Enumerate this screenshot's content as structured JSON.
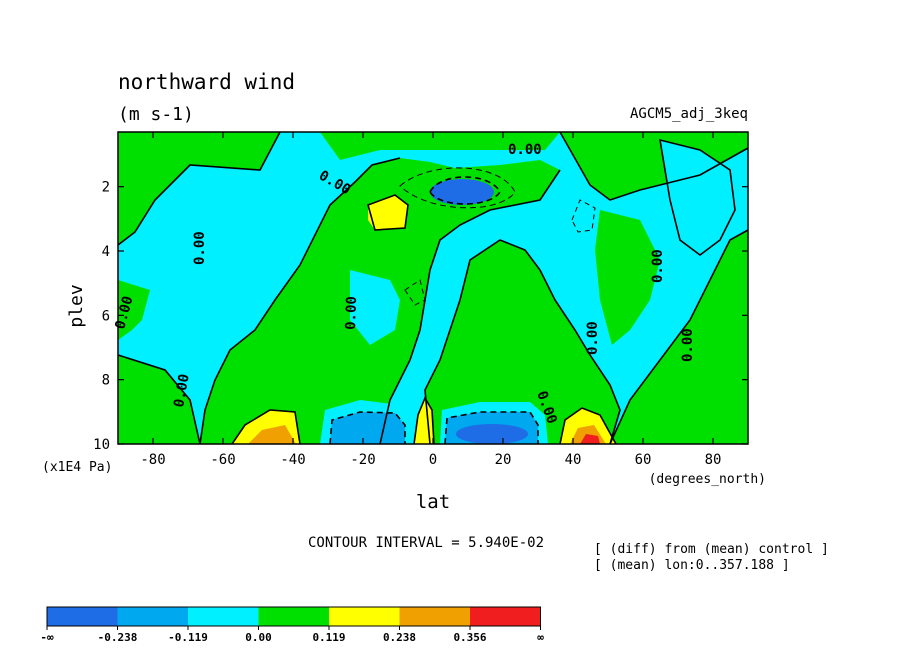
{
  "chart_data": {
    "type": "contour",
    "title": "northward wind",
    "units": "(m s-1)",
    "dataset": "AGCM5_adj_3keq",
    "xlabel": "lat",
    "xunits": "(degrees_north)",
    "ylabel": "plev",
    "yunits": "(x1E4 Pa)",
    "xlim": [
      -90,
      90
    ],
    "ylim": [
      10,
      0.3
    ],
    "x_ticks": [
      "-80",
      "-60",
      "-40",
      "-20",
      "0",
      "20",
      "40",
      "60",
      "80"
    ],
    "y_ticks": [
      "2",
      "4",
      "6",
      "8",
      "10"
    ],
    "contour_interval_text": "CONTOUR INTERVAL = 5.940E-02",
    "notes": [
      "[ (diff) from (mean) control ]",
      "[ (mean) lon:0..357.188 ]"
    ],
    "contour_labels": [
      "0.00",
      "0.00",
      "0.00",
      "0.00",
      "0.00",
      "0.00",
      "0.00",
      "0.00",
      "0.00",
      "0.00"
    ],
    "colorbar": {
      "labels": [
        "-∞",
        "-0.238",
        "-0.119",
        "0.00",
        "0.119",
        "0.238",
        "0.356",
        "∞"
      ],
      "colors": [
        "#1e6ce6",
        "#00a8f0",
        "#00f0ff",
        "#00e000",
        "#ffff00",
        "#f0a000",
        "#f01e1e"
      ]
    },
    "features": [
      {
        "sign": "negative",
        "lat": 5,
        "plev": 2.1,
        "level": "< -0.238"
      },
      {
        "sign": "positive",
        "lat": -13,
        "plev": 2.7,
        "level": "> 0.119"
      },
      {
        "sign": "positive",
        "lat": -43,
        "plev": 9.8,
        "level": "> 0.356"
      },
      {
        "sign": "positive",
        "lat": 43,
        "plev": 9.8,
        "level": "> 0.356"
      },
      {
        "sign": "negative",
        "lat": -18,
        "plev": 9.6,
        "level": "-0.238 to -0.119"
      },
      {
        "sign": "negative",
        "lat": 18,
        "plev": 9.6,
        "level": "-0.238 to -0.119"
      },
      {
        "sign": "positive",
        "lat": -2,
        "plev": 9.5,
        "level": "> 0.119"
      }
    ]
  }
}
